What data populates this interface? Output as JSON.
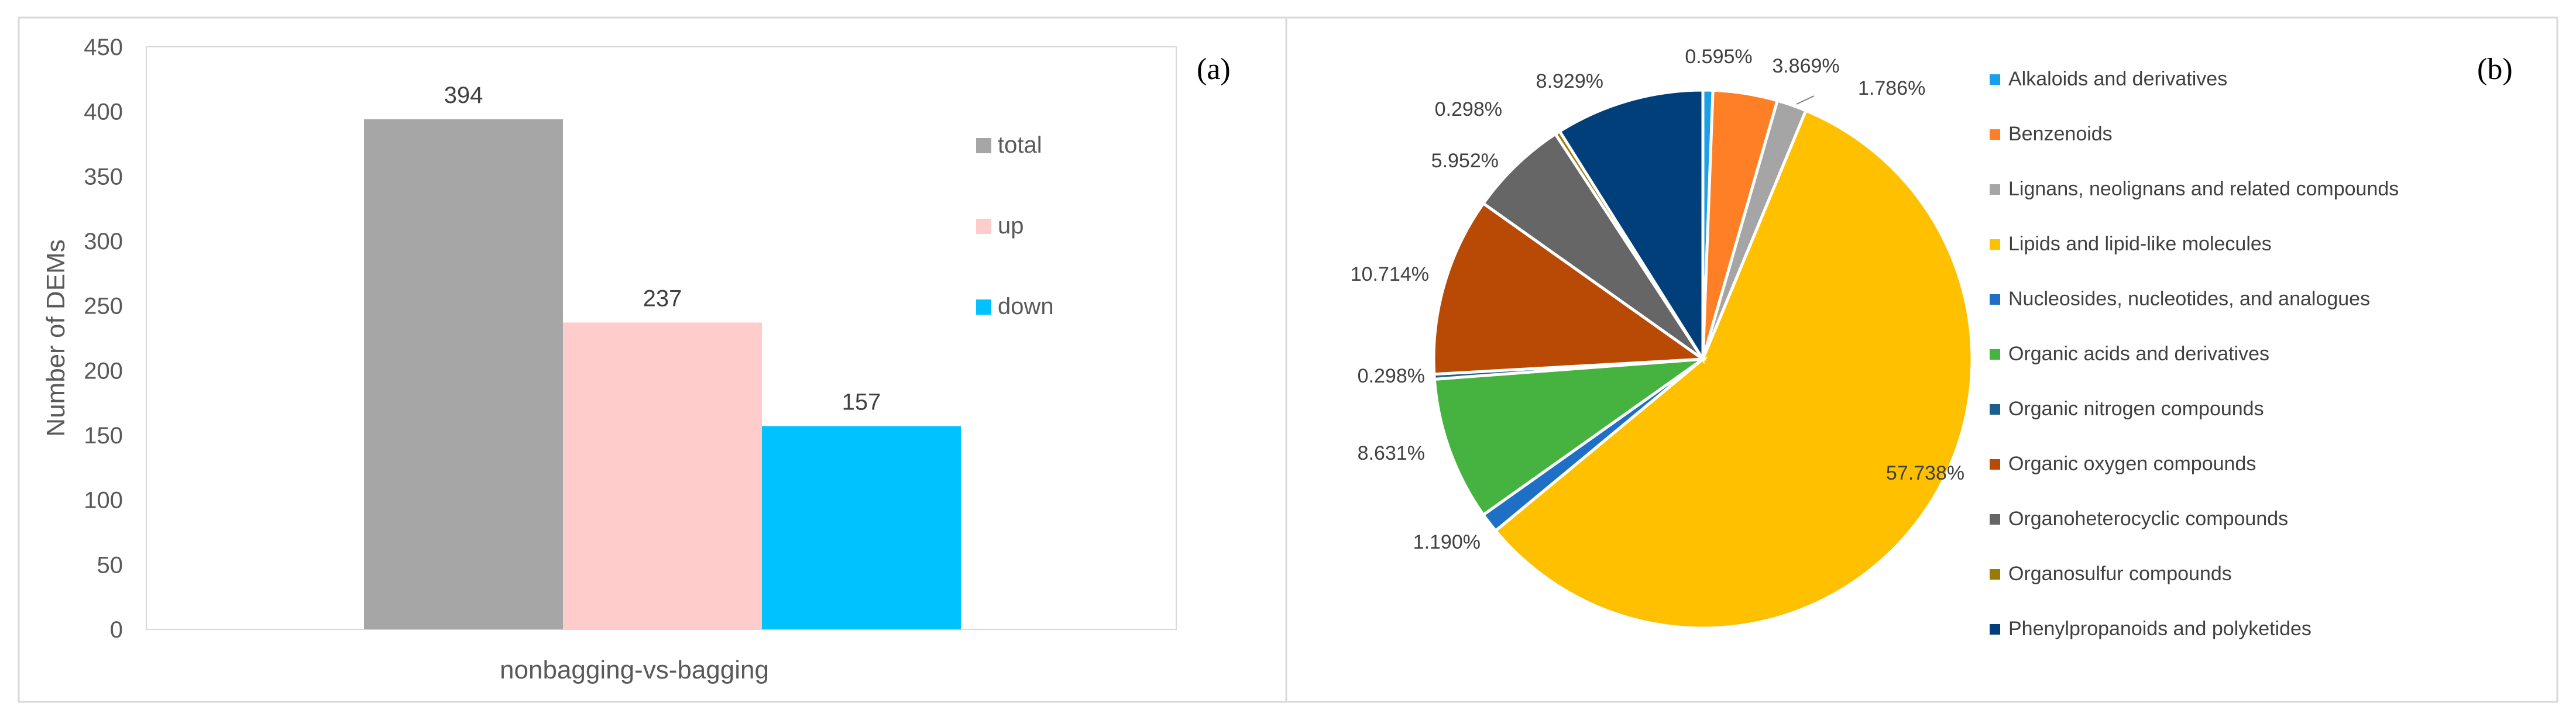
{
  "chart_data": [
    {
      "type": "bar",
      "panel_label": "(a)",
      "categories": [
        "nonbagging-vs-bagging"
      ],
      "xlabel": "nonbagging-vs-bagging",
      "ylabel": "Number of DEMs",
      "ylim": [
        0,
        450
      ],
      "yticks": [
        0,
        50,
        100,
        150,
        200,
        250,
        300,
        350,
        400,
        450
      ],
      "legend_position": "right",
      "series": [
        {
          "name": "total",
          "values": [
            394
          ],
          "color": "#a6a6a6"
        },
        {
          "name": "up",
          "values": [
            237
          ],
          "color": "#ffcccc"
        },
        {
          "name": "down",
          "values": [
            157
          ],
          "color": "#00c2ff"
        }
      ]
    },
    {
      "type": "pie",
      "panel_label": "(b)",
      "legend_position": "right",
      "slices": [
        {
          "name": "Alkaloids and derivatives",
          "value": 0.595,
          "label": "0.595%",
          "color": "#1aa0e8"
        },
        {
          "name": "Benzenoids",
          "value": 3.869,
          "label": "3.869%",
          "color": "#ff7f27"
        },
        {
          "name": "Lignans, neolignans and related compounds",
          "value": 1.786,
          "label": "1.786%",
          "color": "#a5a5a5"
        },
        {
          "name": "Lipids and lipid-like molecules",
          "value": 57.738,
          "label": "57.738%",
          "color": "#ffc000"
        },
        {
          "name": "Nucleosides, nucleotides, and analogues",
          "value": 1.19,
          "label": "1.190%",
          "color": "#1f6fc6"
        },
        {
          "name": "Organic acids and derivatives",
          "value": 8.631,
          "label": "8.631%",
          "color": "#46b340"
        },
        {
          "name": "Organic nitrogen compounds",
          "value": 0.298,
          "label": "0.298%",
          "color": "#1d5f8c"
        },
        {
          "name": "Organic oxygen compounds",
          "value": 10.714,
          "label": "10.714%",
          "color": "#b84a06"
        },
        {
          "name": "Organoheterocyclic compounds",
          "value": 5.952,
          "label": "5.952%",
          "color": "#666666"
        },
        {
          "name": "Organosulfur compounds",
          "value": 0.298,
          "label": "0.298%",
          "color": "#9a7a07"
        },
        {
          "name": "Phenylpropanoids and polyketides",
          "value": 8.929,
          "label": "8.929%",
          "color": "#003f7a"
        }
      ]
    }
  ]
}
